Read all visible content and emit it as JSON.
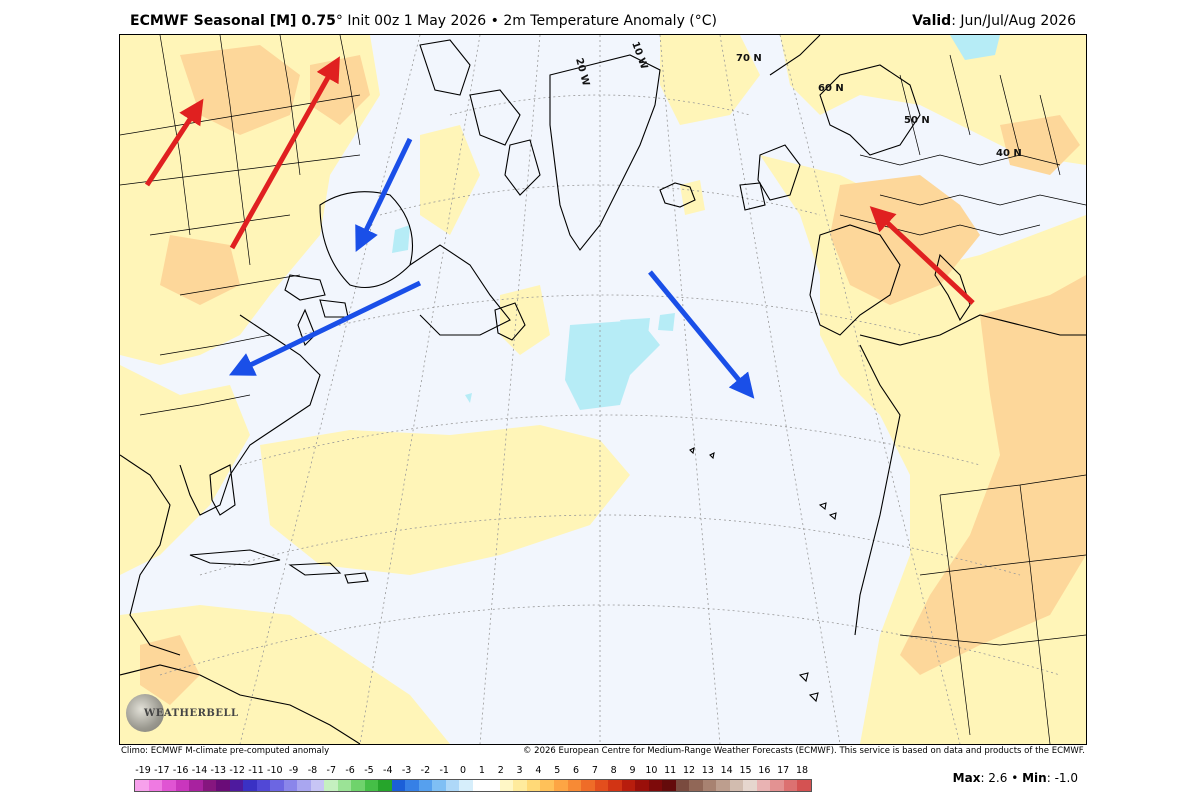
{
  "header": {
    "model": "ECMWF Seasonal [M] 0.75",
    "degree": "°",
    "init": "Init 00z 1 May 2026",
    "bullet": "•",
    "variable": "2m Temperature Anomaly (",
    "unit": "°C",
    "variable_close": ")",
    "valid_label": "Valid",
    "valid_value": ": Jun/Jul/Aug 2026"
  },
  "map": {
    "lat_labels": [
      "70 N",
      "60 N",
      "50 N",
      "40 N"
    ],
    "lon_labels": [
      "20 W",
      "10 W"
    ],
    "logo_text": "WEATHERBELL",
    "arrows": [
      {
        "name": "arrow-red-canada-west",
        "color": "#e02020"
      },
      {
        "name": "arrow-red-canada-central",
        "color": "#e02020"
      },
      {
        "name": "arrow-blue-hudson-bay",
        "color": "#1a4fe8"
      },
      {
        "name": "arrow-blue-us-east",
        "color": "#1a4fe8"
      },
      {
        "name": "arrow-blue-north-atlantic",
        "color": "#1a4fe8"
      },
      {
        "name": "arrow-red-europe",
        "color": "#e02020"
      }
    ]
  },
  "footer": {
    "climo": "Climo: ECMWF M-climate pre-computed anomaly",
    "copyright": "© 2026 European Centre for Medium-Range Weather Forecasts (ECMWF). This service is based on data and products of the ECMWF."
  },
  "colorbar": {
    "ticks": [
      "-19",
      "-17",
      "-16",
      "-14",
      "-13",
      "-12",
      "-11",
      "-10",
      "-9",
      "-8",
      "-7",
      "-6",
      "-5",
      "-4",
      "-3",
      "-2",
      "-1",
      "0",
      "1",
      "2",
      "3",
      "4",
      "5",
      "6",
      "7",
      "8",
      "9",
      "10",
      "11",
      "12",
      "13",
      "14",
      "15",
      "16",
      "17",
      "18"
    ],
    "colors": [
      "#f7a1ec",
      "#ef7ae2",
      "#e054d3",
      "#c936bd",
      "#a8229f",
      "#86167f",
      "#6a0c78",
      "#4e1a9e",
      "#3a31c4",
      "#5148d6",
      "#6c66e2",
      "#8a86ea",
      "#a9a6f0",
      "#c7c5f5",
      "#c5f0c0",
      "#9be396",
      "#6fd36c",
      "#45bf47",
      "#26a52b",
      "#1b5fd8",
      "#3680e6",
      "#56a0ee",
      "#7fbff4",
      "#aed8f8",
      "#d6eefb",
      "#ffffff",
      "#ffffff",
      "#fff7c6",
      "#ffeb9d",
      "#ffd977",
      "#ffc159",
      "#fda544",
      "#f78a35",
      "#ef6c28",
      "#e34e1d",
      "#d23414",
      "#b81d0d",
      "#9a0f0a",
      "#7d0a0a",
      "#640b0b",
      "#7a4b3f",
      "#916757",
      "#a88271",
      "#bd9e8e",
      "#d2bcaf",
      "#e6d6ce",
      "#e9b3b3",
      "#e39292",
      "#dc7171",
      "#d45252"
    ]
  },
  "stats": {
    "max_label": "Max",
    "max_value": ": 2.6",
    "sep": " • ",
    "min_label": "Min",
    "min_value": ": -1.0"
  }
}
